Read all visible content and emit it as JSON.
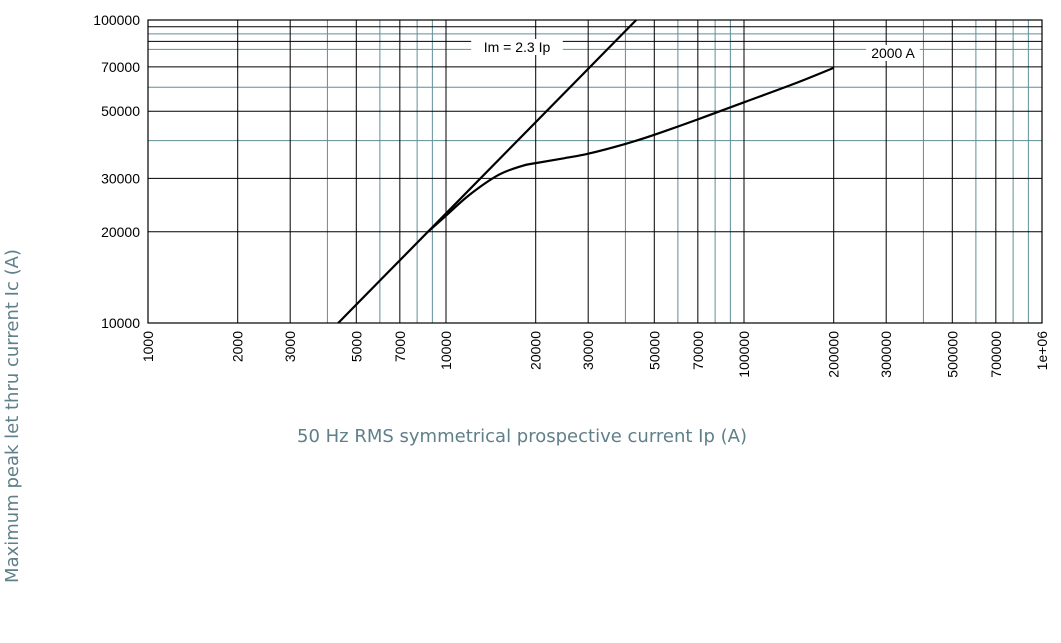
{
  "chart_data": {
    "type": "line",
    "title": "",
    "xlabel": "50 Hz RMS symmetrical prospective current Ip (A)",
    "ylabel": "Maximum peak let thru current Ic (A)",
    "x_scale": "log",
    "y_scale": "log",
    "xlim": [
      1000,
      1000000
    ],
    "ylim": [
      10000,
      100000
    ],
    "grid": true,
    "x_tick_labels": [
      "1000",
      "2000",
      "3000",
      "5000",
      "7000",
      "10000",
      "20000",
      "30000",
      "50000",
      "70000",
      "100000",
      "200000",
      "300000",
      "500000",
      "700000",
      "1e+06"
    ],
    "y_tick_labels": [
      "10000",
      "20000",
      "30000",
      "50000",
      "70000",
      "100000"
    ],
    "series": [
      {
        "name": "Im = 2.3 Ip",
        "x": [
          4348,
          43478
        ],
        "y": [
          10000,
          100000
        ]
      },
      {
        "name": "2000 A",
        "x": [
          8696,
          10000,
          12000,
          15000,
          18000,
          20000,
          25000,
          30000,
          40000,
          50000,
          70000,
          100000,
          150000,
          200000
        ],
        "y": [
          20000,
          22600,
          26500,
          30800,
          33000,
          33700,
          35000,
          36200,
          39000,
          41800,
          47000,
          53500,
          62000,
          69500
        ]
      }
    ],
    "annotations": [
      "Im = 2.3 Ip",
      "2000 A"
    ],
    "colors": {
      "gridline_major": "#000000",
      "gridline_minor": "#5f8f99",
      "curve": "#000000",
      "axis_title": "#5f7f8a"
    }
  }
}
